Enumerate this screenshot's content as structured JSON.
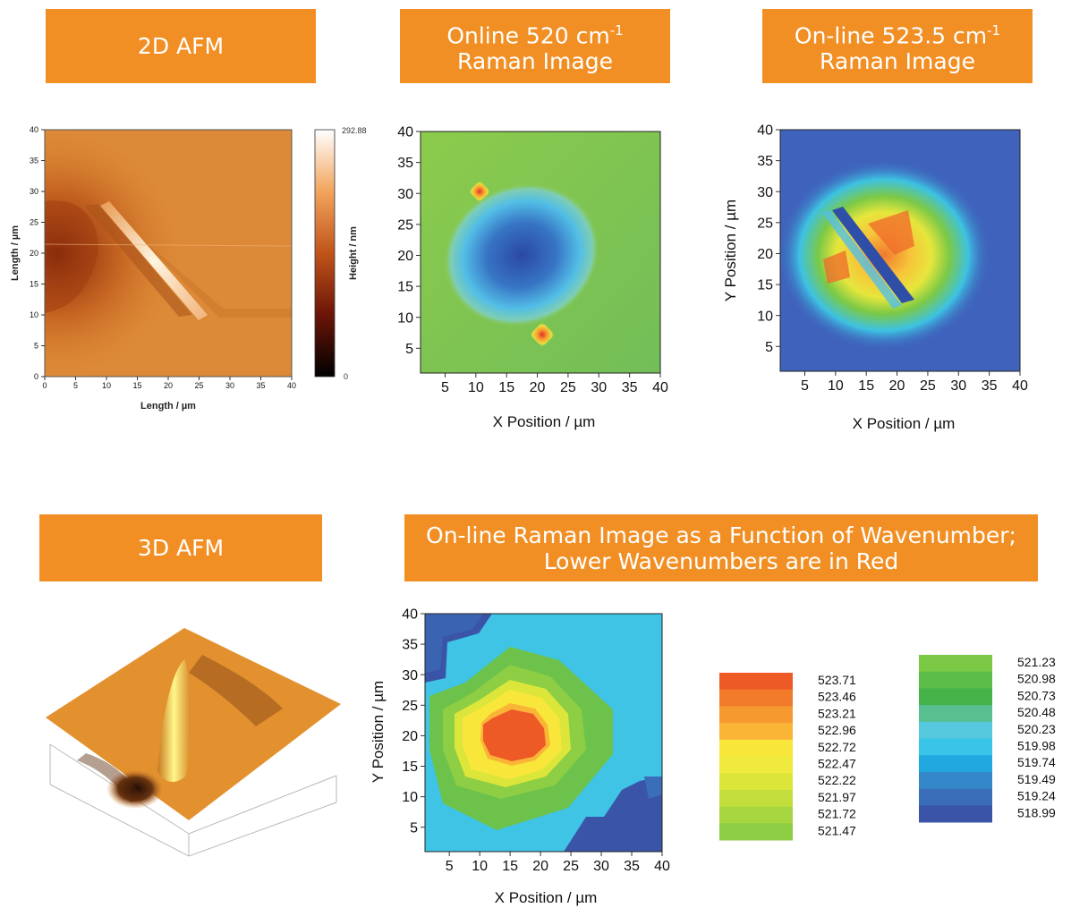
{
  "banners": {
    "afm2d": "2D AFM",
    "online520_line1": "Online 520 cm",
    "online520_sup": "-1",
    "online520_line2": "Raman Image",
    "online523_line1": "On-line 523.5 cm",
    "online523_sup": "-1",
    "online523_line2": "Raman Image",
    "afm3d": "3D AFM",
    "wavenumber_line1": "On-line Raman Image as a Function of Wavenumber;",
    "wavenumber_line2": "Lower Wavenumbers are in Red"
  },
  "colors": {
    "banner": "#F18F24"
  },
  "chart_data": [
    {
      "id": "afm2d",
      "type": "heatmap",
      "title": "2D AFM",
      "xlabel": "Length / µm",
      "ylabel": "Length / µm",
      "colorbar_label": "Height / nm",
      "colorbar_max": "292.88",
      "colorbar_min": "0",
      "xlim": [
        0,
        40
      ],
      "ylim": [
        0,
        40
      ],
      "xticks": [
        "0",
        "5",
        "10",
        "15",
        "20",
        "25",
        "30",
        "35",
        "40"
      ],
      "yticks": [
        "0",
        "5",
        "10",
        "15",
        "20",
        "25",
        "30",
        "35",
        "40"
      ]
    },
    {
      "id": "raman520",
      "type": "heatmap",
      "title": "Online 520 cm-1 Raman Image",
      "xlabel": "X Position / µm",
      "ylabel": "",
      "xlim": [
        1,
        40
      ],
      "ylim": [
        1,
        40
      ],
      "xticks": [
        "5",
        "10",
        "15",
        "20",
        "25",
        "30",
        "35",
        "40"
      ],
      "yticks": [
        "5",
        "10",
        "15",
        "20",
        "25",
        "30",
        "35",
        "40"
      ]
    },
    {
      "id": "raman523",
      "type": "heatmap",
      "title": "On-line 523.5 cm-1 Raman Image",
      "xlabel": "X Position / µm",
      "ylabel": "Y Position / µm",
      "xlim": [
        1,
        40
      ],
      "ylim": [
        1,
        40
      ],
      "xticks": [
        "5",
        "10",
        "15",
        "20",
        "25",
        "30",
        "35",
        "40"
      ],
      "yticks": [
        "5",
        "10",
        "15",
        "20",
        "25",
        "30",
        "35",
        "40"
      ]
    },
    {
      "id": "ramanWave",
      "type": "heatmap",
      "title": "On-line Raman Image as a Function of Wavenumber; Lower Wavenumbers are in Red",
      "xlabel": "X Position / µm",
      "ylabel": "Y Position / µm",
      "xlim": [
        1,
        40
      ],
      "ylim": [
        1,
        40
      ],
      "xticks": [
        "5",
        "10",
        "15",
        "20",
        "25",
        "30",
        "35",
        "40"
      ],
      "yticks": [
        "5",
        "10",
        "15",
        "20",
        "25",
        "30",
        "35",
        "40"
      ],
      "legend": [
        {
          "value": "523.71",
          "color": "#EE5A26"
        },
        {
          "value": "523.46",
          "color": "#F27A2B"
        },
        {
          "value": "523.21",
          "color": "#F69A30"
        },
        {
          "value": "522.96",
          "color": "#FAB537"
        },
        {
          "value": "522.72",
          "color": "#F9E63A"
        },
        {
          "value": "522.47",
          "color": "#EFEA3D"
        },
        {
          "value": "522.22",
          "color": "#DCE63A"
        },
        {
          "value": "521.97",
          "color": "#C3DE3C"
        },
        {
          "value": "521.72",
          "color": "#A8D640"
        },
        {
          "value": "521.47",
          "color": "#8DCE44"
        },
        {
          "value": "521.23",
          "color": "#7CC946"
        },
        {
          "value": "520.98",
          "color": "#5CBE48"
        },
        {
          "value": "520.73",
          "color": "#45B34A"
        },
        {
          "value": "520.48",
          "color": "#58BF90"
        },
        {
          "value": "520.23",
          "color": "#57C9DE"
        },
        {
          "value": "519.98",
          "color": "#39C5E8"
        },
        {
          "value": "519.74",
          "color": "#21A8E1"
        },
        {
          "value": "519.49",
          "color": "#3488C9"
        },
        {
          "value": "519.24",
          "color": "#3B6EB8"
        },
        {
          "value": "518.99",
          "color": "#3A55A7"
        }
      ]
    }
  ]
}
